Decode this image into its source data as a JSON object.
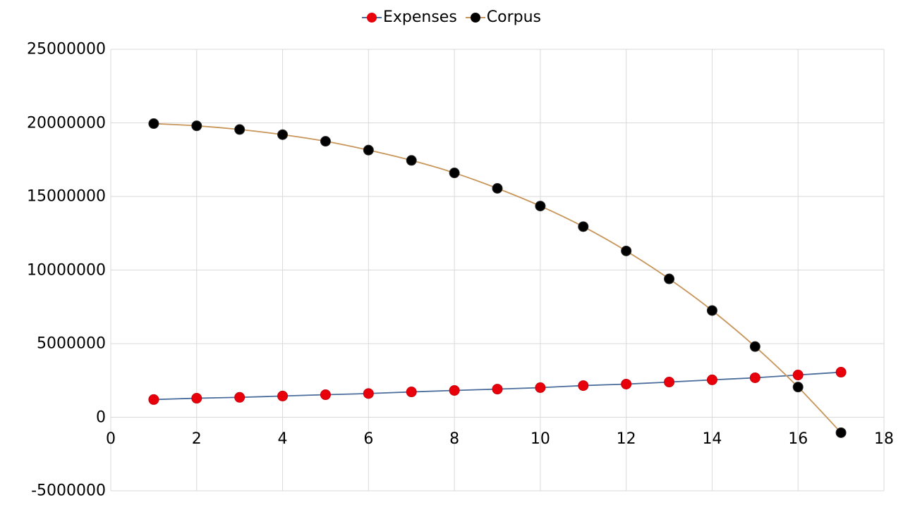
{
  "chart_data": {
    "type": "line",
    "title": "",
    "xlabel": "",
    "ylabel": "",
    "xlim": [
      0,
      18
    ],
    "ylim": [
      -5000000,
      25000000
    ],
    "x_ticks": [
      0,
      2,
      4,
      6,
      8,
      10,
      12,
      14,
      16,
      18
    ],
    "y_ticks": [
      -5000000,
      0,
      5000000,
      10000000,
      15000000,
      20000000,
      25000000
    ],
    "x_tick_labels": [
      "0",
      "2",
      "4",
      "6",
      "8",
      "10",
      "12",
      "14",
      "16",
      "18"
    ],
    "y_tick_labels": [
      "-5000000",
      "0",
      "5000000",
      "10000000",
      "15000000",
      "20000000",
      "25000000"
    ],
    "grid": true,
    "legend_position": "top",
    "x": [
      1,
      2,
      3,
      4,
      5,
      6,
      7,
      8,
      9,
      10,
      11,
      12,
      13,
      14,
      15,
      16,
      17
    ],
    "series": [
      {
        "name": "Expenses",
        "marker_color": "#e8000b",
        "line_color": "#4a6d9c",
        "values": [
          1200000,
          1290000,
          1350000,
          1440000,
          1530000,
          1610000,
          1720000,
          1820000,
          1910000,
          2010000,
          2150000,
          2250000,
          2390000,
          2540000,
          2680000,
          2870000,
          3060000
        ]
      },
      {
        "name": "Corpus",
        "marker_color": "#000000",
        "line_color": "#c8955a",
        "values": [
          19950000,
          19800000,
          19550000,
          19200000,
          18750000,
          18150000,
          17450000,
          16600000,
          15550000,
          14350000,
          12950000,
          11300000,
          9400000,
          7250000,
          4800000,
          2050000,
          -1050000
        ]
      }
    ]
  }
}
